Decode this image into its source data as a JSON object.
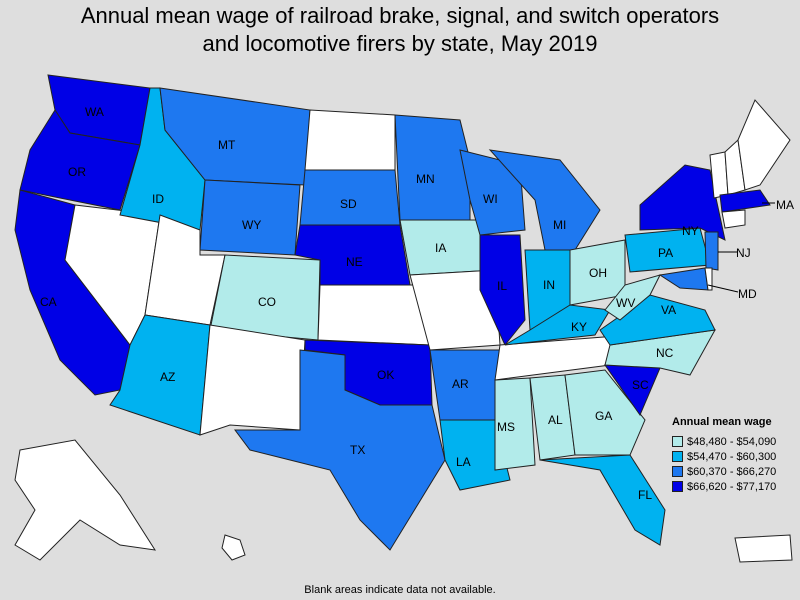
{
  "title_line1": "Annual mean wage of railroad brake, signal, and switch operators",
  "title_line2": "and locomotive firers by state, May 2019",
  "legend": {
    "title": "Annual mean wage",
    "items": [
      {
        "label": "$48,480 - $54,090",
        "color": "#b2ebea"
      },
      {
        "label": "$54,470 - $60,300",
        "color": "#00b2f0"
      },
      {
        "label": "$60,370 - $66,270",
        "color": "#1e78f0"
      },
      {
        "label": "$66,620 - $77,170",
        "color": "#0000e6"
      }
    ]
  },
  "footnote": "Blank areas indicate data not available.",
  "states": {
    "WA": "WA",
    "OR": "OR",
    "CA": "CA",
    "ID": "ID",
    "MT": "MT",
    "WY": "WY",
    "CO": "CO",
    "AZ": "AZ",
    "SD": "SD",
    "NE": "NE",
    "OK": "OK",
    "TX": "TX",
    "MN": "MN",
    "IA": "IA",
    "WI": "WI",
    "IL": "IL",
    "MI": "MI",
    "IN": "IN",
    "OH": "OH",
    "KY": "KY",
    "WV": "WV",
    "VA": "VA",
    "PA": "PA",
    "NY": "NY",
    "NJ": "NJ",
    "MD": "MD",
    "MA": "MA",
    "NC": "NC",
    "SC": "SC",
    "GA": "GA",
    "AL": "AL",
    "MS": "MS",
    "AR": "AR",
    "LA": "LA",
    "FL": "FL"
  }
}
